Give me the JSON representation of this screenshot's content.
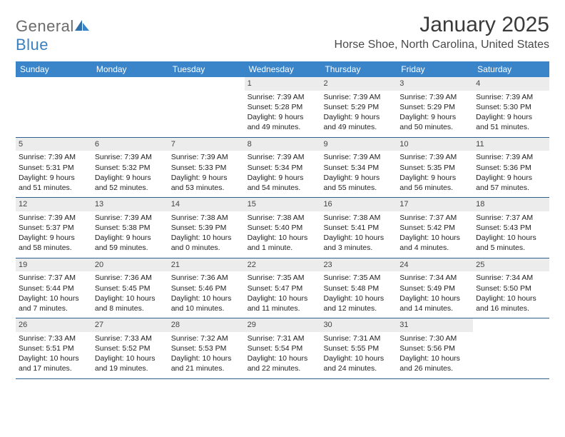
{
  "brand": {
    "text_a": "General",
    "text_b": "Blue"
  },
  "title": "January 2025",
  "location": "Horse Shoe, North Carolina, United States",
  "colors": {
    "header_bg": "#3a85c9",
    "header_text": "#ffffff",
    "daynum_bg": "#ececec",
    "week_border": "#2f5f8f",
    "brand_gray": "#6b6b6b",
    "brand_blue": "#3a7fbf"
  },
  "typography": {
    "title_fontsize": 30,
    "location_fontsize": 16,
    "dayhead_fontsize": 12,
    "cell_fontsize": 10.5
  },
  "day_headers": [
    "Sunday",
    "Monday",
    "Tuesday",
    "Wednesday",
    "Thursday",
    "Friday",
    "Saturday"
  ],
  "weeks": [
    [
      {
        "empty": true
      },
      {
        "empty": true
      },
      {
        "empty": true
      },
      {
        "day": "1",
        "sunrise": "Sunrise: 7:39 AM",
        "sunset": "Sunset: 5:28 PM",
        "d1": "Daylight: 9 hours",
        "d2": "and 49 minutes."
      },
      {
        "day": "2",
        "sunrise": "Sunrise: 7:39 AM",
        "sunset": "Sunset: 5:29 PM",
        "d1": "Daylight: 9 hours",
        "d2": "and 49 minutes."
      },
      {
        "day": "3",
        "sunrise": "Sunrise: 7:39 AM",
        "sunset": "Sunset: 5:29 PM",
        "d1": "Daylight: 9 hours",
        "d2": "and 50 minutes."
      },
      {
        "day": "4",
        "sunrise": "Sunrise: 7:39 AM",
        "sunset": "Sunset: 5:30 PM",
        "d1": "Daylight: 9 hours",
        "d2": "and 51 minutes."
      }
    ],
    [
      {
        "day": "5",
        "sunrise": "Sunrise: 7:39 AM",
        "sunset": "Sunset: 5:31 PM",
        "d1": "Daylight: 9 hours",
        "d2": "and 51 minutes."
      },
      {
        "day": "6",
        "sunrise": "Sunrise: 7:39 AM",
        "sunset": "Sunset: 5:32 PM",
        "d1": "Daylight: 9 hours",
        "d2": "and 52 minutes."
      },
      {
        "day": "7",
        "sunrise": "Sunrise: 7:39 AM",
        "sunset": "Sunset: 5:33 PM",
        "d1": "Daylight: 9 hours",
        "d2": "and 53 minutes."
      },
      {
        "day": "8",
        "sunrise": "Sunrise: 7:39 AM",
        "sunset": "Sunset: 5:34 PM",
        "d1": "Daylight: 9 hours",
        "d2": "and 54 minutes."
      },
      {
        "day": "9",
        "sunrise": "Sunrise: 7:39 AM",
        "sunset": "Sunset: 5:34 PM",
        "d1": "Daylight: 9 hours",
        "d2": "and 55 minutes."
      },
      {
        "day": "10",
        "sunrise": "Sunrise: 7:39 AM",
        "sunset": "Sunset: 5:35 PM",
        "d1": "Daylight: 9 hours",
        "d2": "and 56 minutes."
      },
      {
        "day": "11",
        "sunrise": "Sunrise: 7:39 AM",
        "sunset": "Sunset: 5:36 PM",
        "d1": "Daylight: 9 hours",
        "d2": "and 57 minutes."
      }
    ],
    [
      {
        "day": "12",
        "sunrise": "Sunrise: 7:39 AM",
        "sunset": "Sunset: 5:37 PM",
        "d1": "Daylight: 9 hours",
        "d2": "and 58 minutes."
      },
      {
        "day": "13",
        "sunrise": "Sunrise: 7:39 AM",
        "sunset": "Sunset: 5:38 PM",
        "d1": "Daylight: 9 hours",
        "d2": "and 59 minutes."
      },
      {
        "day": "14",
        "sunrise": "Sunrise: 7:38 AM",
        "sunset": "Sunset: 5:39 PM",
        "d1": "Daylight: 10 hours",
        "d2": "and 0 minutes."
      },
      {
        "day": "15",
        "sunrise": "Sunrise: 7:38 AM",
        "sunset": "Sunset: 5:40 PM",
        "d1": "Daylight: 10 hours",
        "d2": "and 1 minute."
      },
      {
        "day": "16",
        "sunrise": "Sunrise: 7:38 AM",
        "sunset": "Sunset: 5:41 PM",
        "d1": "Daylight: 10 hours",
        "d2": "and 3 minutes."
      },
      {
        "day": "17",
        "sunrise": "Sunrise: 7:37 AM",
        "sunset": "Sunset: 5:42 PM",
        "d1": "Daylight: 10 hours",
        "d2": "and 4 minutes."
      },
      {
        "day": "18",
        "sunrise": "Sunrise: 7:37 AM",
        "sunset": "Sunset: 5:43 PM",
        "d1": "Daylight: 10 hours",
        "d2": "and 5 minutes."
      }
    ],
    [
      {
        "day": "19",
        "sunrise": "Sunrise: 7:37 AM",
        "sunset": "Sunset: 5:44 PM",
        "d1": "Daylight: 10 hours",
        "d2": "and 7 minutes."
      },
      {
        "day": "20",
        "sunrise": "Sunrise: 7:36 AM",
        "sunset": "Sunset: 5:45 PM",
        "d1": "Daylight: 10 hours",
        "d2": "and 8 minutes."
      },
      {
        "day": "21",
        "sunrise": "Sunrise: 7:36 AM",
        "sunset": "Sunset: 5:46 PM",
        "d1": "Daylight: 10 hours",
        "d2": "and 10 minutes."
      },
      {
        "day": "22",
        "sunrise": "Sunrise: 7:35 AM",
        "sunset": "Sunset: 5:47 PM",
        "d1": "Daylight: 10 hours",
        "d2": "and 11 minutes."
      },
      {
        "day": "23",
        "sunrise": "Sunrise: 7:35 AM",
        "sunset": "Sunset: 5:48 PM",
        "d1": "Daylight: 10 hours",
        "d2": "and 12 minutes."
      },
      {
        "day": "24",
        "sunrise": "Sunrise: 7:34 AM",
        "sunset": "Sunset: 5:49 PM",
        "d1": "Daylight: 10 hours",
        "d2": "and 14 minutes."
      },
      {
        "day": "25",
        "sunrise": "Sunrise: 7:34 AM",
        "sunset": "Sunset: 5:50 PM",
        "d1": "Daylight: 10 hours",
        "d2": "and 16 minutes."
      }
    ],
    [
      {
        "day": "26",
        "sunrise": "Sunrise: 7:33 AM",
        "sunset": "Sunset: 5:51 PM",
        "d1": "Daylight: 10 hours",
        "d2": "and 17 minutes."
      },
      {
        "day": "27",
        "sunrise": "Sunrise: 7:33 AM",
        "sunset": "Sunset: 5:52 PM",
        "d1": "Daylight: 10 hours",
        "d2": "and 19 minutes."
      },
      {
        "day": "28",
        "sunrise": "Sunrise: 7:32 AM",
        "sunset": "Sunset: 5:53 PM",
        "d1": "Daylight: 10 hours",
        "d2": "and 21 minutes."
      },
      {
        "day": "29",
        "sunrise": "Sunrise: 7:31 AM",
        "sunset": "Sunset: 5:54 PM",
        "d1": "Daylight: 10 hours",
        "d2": "and 22 minutes."
      },
      {
        "day": "30",
        "sunrise": "Sunrise: 7:31 AM",
        "sunset": "Sunset: 5:55 PM",
        "d1": "Daylight: 10 hours",
        "d2": "and 24 minutes."
      },
      {
        "day": "31",
        "sunrise": "Sunrise: 7:30 AM",
        "sunset": "Sunset: 5:56 PM",
        "d1": "Daylight: 10 hours",
        "d2": "and 26 minutes."
      },
      {
        "empty": true
      }
    ]
  ]
}
